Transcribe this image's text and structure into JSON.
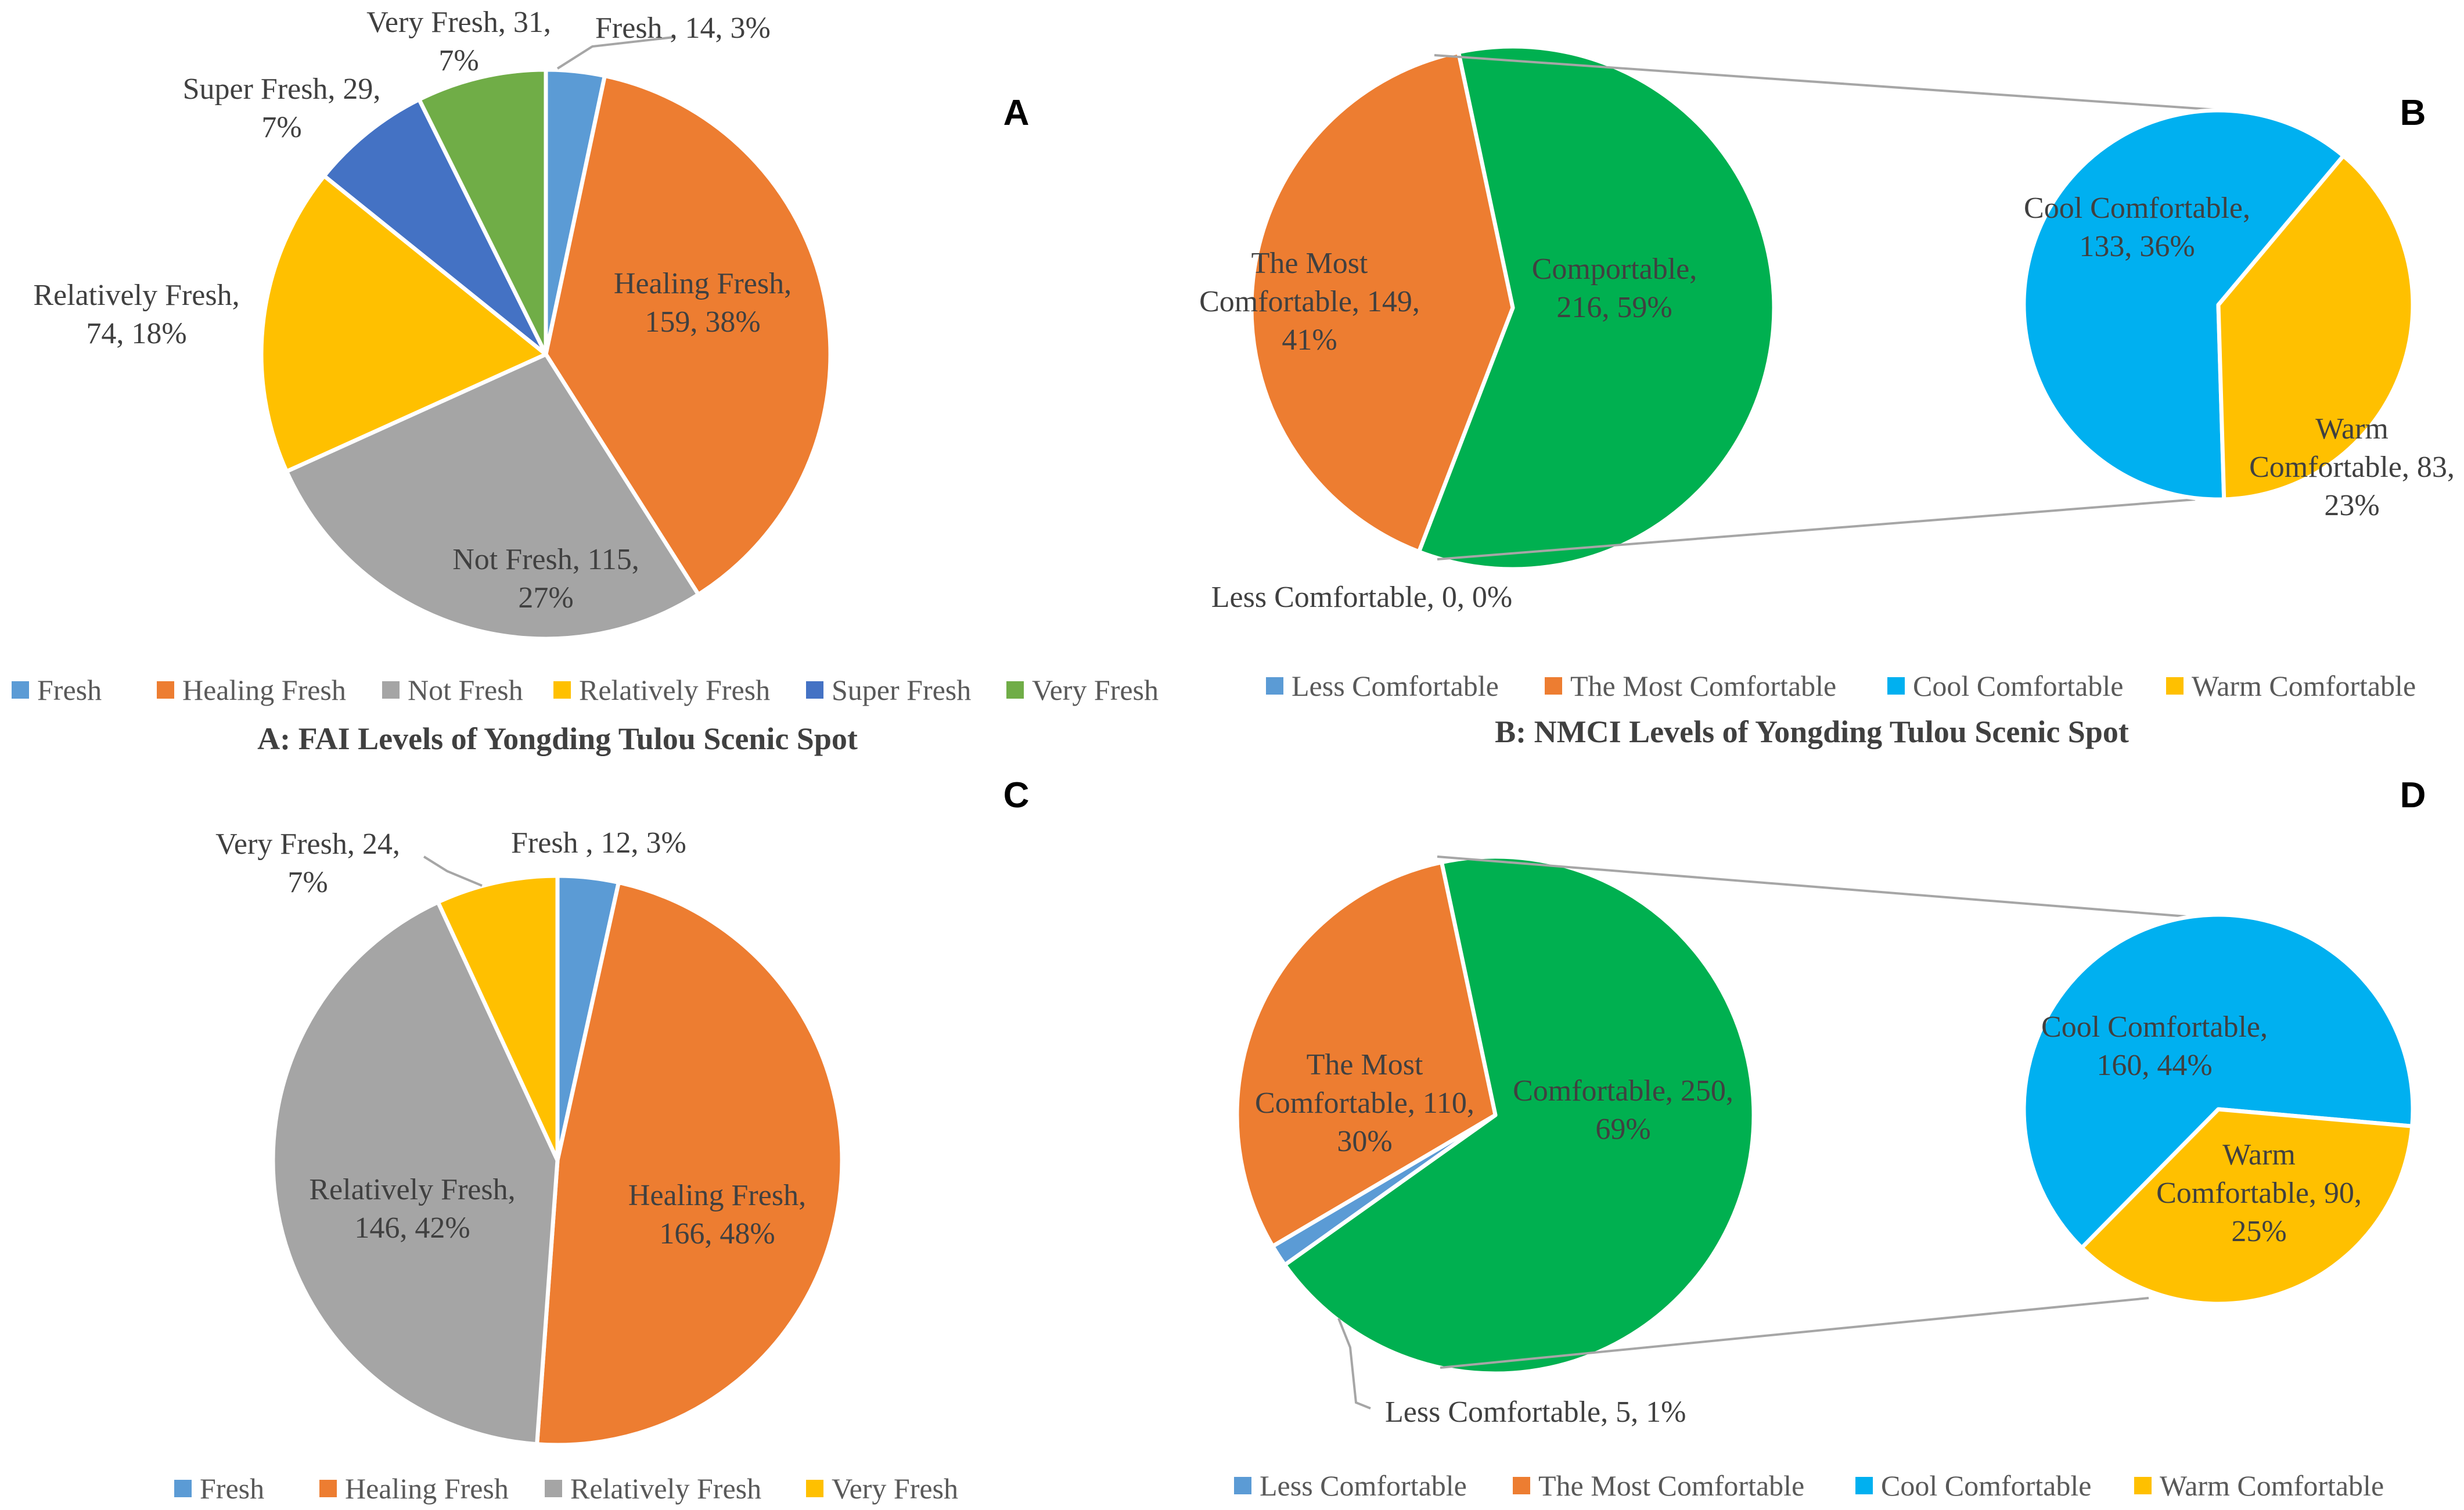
{
  "colors": {
    "blue_light": "#5B9BD5",
    "orange": "#ED7D31",
    "gray": "#A5A5A5",
    "yellow": "#FFC000",
    "blue_dark": "#4472C4",
    "green": "#70AD47",
    "green_bright": "#00B050",
    "cyan": "#00B0F0",
    "connector": "#A6A6A6",
    "text": "#404040",
    "legend_text": "#595959"
  },
  "chart_data": [
    {
      "panel": "A",
      "type": "pie",
      "title": "A: FAI Levels of Yongding Tulou Scenic Spot",
      "slices": [
        {
          "name": "Fresh",
          "value": 14,
          "percent": "3%",
          "color": "#5B9BD5",
          "label_lines": [
            "Fresh , 14, 3%"
          ]
        },
        {
          "name": "Healing Fresh",
          "value": 159,
          "percent": "38%",
          "color": "#ED7D31",
          "label_lines": [
            "Healing Fresh,",
            "159, 38%"
          ]
        },
        {
          "name": "Not Fresh",
          "value": 115,
          "percent": "27%",
          "color": "#A5A5A5",
          "label_lines": [
            "Not Fresh, 115,",
            "27%"
          ]
        },
        {
          "name": "Relatively Fresh",
          "value": 74,
          "percent": "18%",
          "color": "#FFC000",
          "label_lines": [
            "Relatively Fresh,",
            "74, 18%"
          ]
        },
        {
          "name": "Super Fresh",
          "value": 29,
          "percent": "7%",
          "color": "#4472C4",
          "label_lines": [
            "Super Fresh, 29,",
            "7%"
          ]
        },
        {
          "name": "Very Fresh",
          "value": 31,
          "percent": "7%",
          "color": "#70AD47",
          "label_lines": [
            "Very Fresh, 31,",
            "7%"
          ]
        }
      ],
      "legend": [
        "Fresh",
        "Healing Fresh",
        "Not Fresh",
        "Relatively Fresh",
        "Super Fresh",
        "Very Fresh"
      ]
    },
    {
      "panel": "B",
      "type": "pie-of-pie",
      "title": "B: NMCI Levels of Yongding Tulou Scenic Spot",
      "main_slices": [
        {
          "name": "Less Comfortable",
          "value": 0,
          "percent": "0%",
          "color": "#5B9BD5",
          "label_lines": [
            "Less Comfortable, 0, 0%"
          ]
        },
        {
          "name": "The Most Comfortable",
          "value": 149,
          "percent": "41%",
          "color": "#ED7D31",
          "label_lines": [
            "The Most",
            "Comfortable, 149,",
            "41%"
          ]
        },
        {
          "name": "Comportable",
          "value": 216,
          "percent": "59%",
          "color": "#00B050",
          "label_lines": [
            "Comportable,",
            "216, 59%"
          ]
        }
      ],
      "secondary_slices": [
        {
          "name": "Cool Comfortable",
          "value": 133,
          "percent": "36%",
          "color": "#00B0F0",
          "label_lines": [
            "Cool Comfortable,",
            "133, 36%"
          ]
        },
        {
          "name": "Warm Comfortable",
          "value": 83,
          "percent": "23%",
          "color": "#FFC000",
          "label_lines": [
            "Warm",
            "Comfortable, 83,",
            "23%"
          ]
        }
      ],
      "legend": [
        "Less Comfortable",
        "The Most Comfortable",
        "Cool Comfortable",
        "Warm Comfortable"
      ]
    },
    {
      "panel": "C",
      "type": "pie",
      "title": "",
      "slices": [
        {
          "name": "Fresh",
          "value": 12,
          "percent": "3%",
          "color": "#5B9BD5",
          "label_lines": [
            "Fresh , 12, 3%"
          ]
        },
        {
          "name": "Healing Fresh",
          "value": 166,
          "percent": "48%",
          "color": "#ED7D31",
          "label_lines": [
            "Healing Fresh,",
            "166, 48%"
          ]
        },
        {
          "name": "Relatively Fresh",
          "value": 146,
          "percent": "42%",
          "color": "#A5A5A5",
          "label_lines": [
            "Relatively Fresh,",
            "146, 42%"
          ]
        },
        {
          "name": "Very Fresh",
          "value": 24,
          "percent": "7%",
          "color": "#FFC000",
          "label_lines": [
            "Very Fresh, 24,",
            "7%"
          ]
        }
      ],
      "legend": [
        "Fresh",
        "Healing Fresh",
        "Relatively Fresh",
        "Very Fresh"
      ]
    },
    {
      "panel": "D",
      "type": "pie-of-pie",
      "title": "",
      "main_slices": [
        {
          "name": "Less Comfortable",
          "value": 5,
          "percent": "1%",
          "color": "#5B9BD5",
          "label_lines": [
            "Less Comfortable, 5, 1%"
          ]
        },
        {
          "name": "The Most Comfortable",
          "value": 110,
          "percent": "30%",
          "color": "#ED7D31",
          "label_lines": [
            "The Most",
            "Comfortable, 110,",
            "30%"
          ]
        },
        {
          "name": "Comfortable",
          "value": 250,
          "percent": "69%",
          "color": "#00B050",
          "label_lines": [
            "Comfortable, 250,",
            "69%"
          ]
        }
      ],
      "secondary_slices": [
        {
          "name": "Cool Comfortable",
          "value": 160,
          "percent": "44%",
          "color": "#00B0F0",
          "label_lines": [
            "Cool Comfortable,",
            "160, 44%"
          ]
        },
        {
          "name": "Warm Comfortable",
          "value": 90,
          "percent": "25%",
          "color": "#FFC000",
          "label_lines": [
            "Warm",
            "Comfortable, 90,",
            "25%"
          ]
        }
      ],
      "legend": [
        "Less Comfortable",
        "The Most Comfortable",
        "Cool Comfortable",
        "Warm Comfortable"
      ]
    }
  ]
}
